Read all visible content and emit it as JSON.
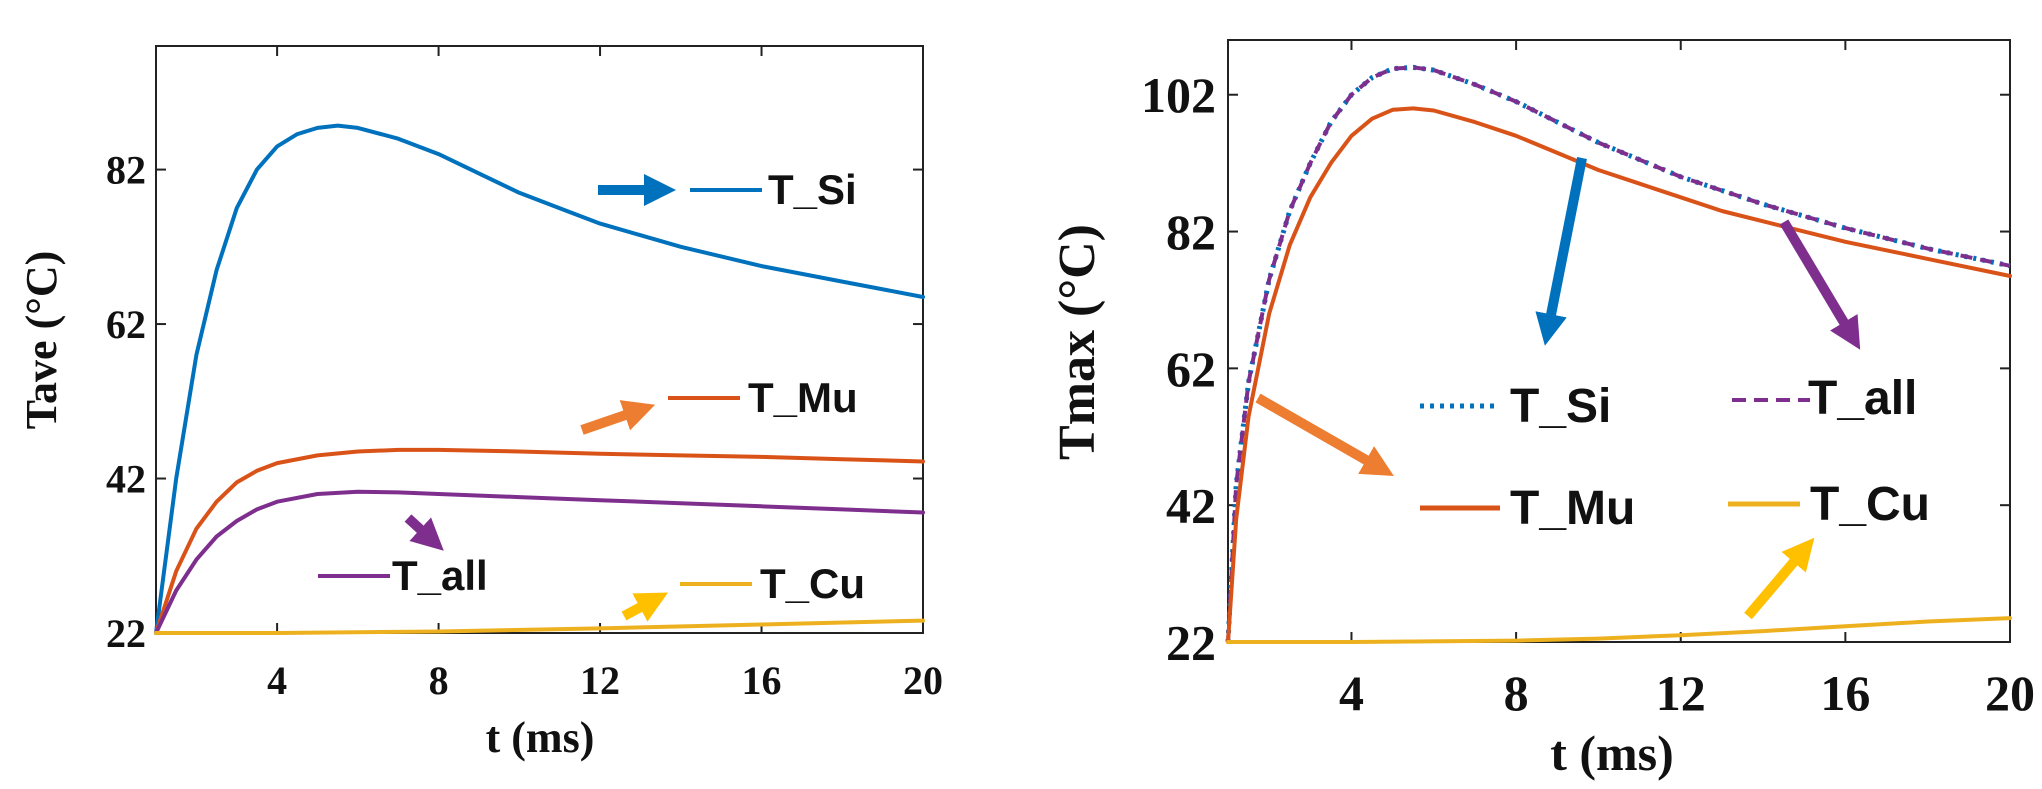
{
  "colors": {
    "si": "#0072BD",
    "mu": "#D95319",
    "all": "#7E2F8E",
    "cu": "#EDB120",
    "arrow_mu": "#ED7D31",
    "arrow_cu": "#FFC000"
  },
  "chart_data": [
    {
      "type": "line",
      "title": "",
      "xlabel": "t (ms)",
      "ylabel": "Tave (°C)",
      "xlim": [
        1,
        20
      ],
      "ylim": [
        22,
        98
      ],
      "xticks": [
        "4",
        "8",
        "12",
        "16",
        "20"
      ],
      "yticks": [
        "22",
        "42",
        "62",
        "82"
      ],
      "grid": false,
      "series": [
        {
          "name": "T_Si",
          "color": "#0072BD",
          "style": "solid",
          "x": [
            1,
            1.5,
            2,
            2.5,
            3,
            3.5,
            4,
            4.5,
            5,
            5.5,
            6,
            7,
            8,
            9,
            10,
            11,
            12,
            13,
            14,
            16,
            18,
            20
          ],
          "y": [
            22,
            42,
            58,
            69,
            77,
            82,
            85,
            86.6,
            87.4,
            87.7,
            87.4,
            86,
            84,
            81.5,
            79,
            77,
            75,
            73.5,
            72,
            69.5,
            67.5,
            65.5
          ]
        },
        {
          "name": "T_Mu",
          "color": "#D95319",
          "style": "solid",
          "x": [
            1,
            1.5,
            2,
            2.5,
            3,
            3.5,
            4,
            5,
            6,
            7,
            8,
            10,
            12,
            14,
            16,
            18,
            20
          ],
          "y": [
            22,
            30,
            35.5,
            39,
            41.5,
            43,
            44,
            45,
            45.5,
            45.7,
            45.7,
            45.5,
            45.2,
            45,
            44.8,
            44.5,
            44.2
          ]
        },
        {
          "name": "T_all",
          "color": "#7E2F8E",
          "style": "solid",
          "x": [
            1,
            1.5,
            2,
            2.5,
            3,
            3.5,
            4,
            5,
            6,
            7,
            8,
            10,
            12,
            14,
            16,
            18,
            20
          ],
          "y": [
            22,
            27.5,
            31.5,
            34.5,
            36.5,
            38,
            39,
            40,
            40.3,
            40.2,
            40,
            39.6,
            39.2,
            38.8,
            38.4,
            38,
            37.6
          ]
        },
        {
          "name": "T_Cu",
          "color": "#EDB120",
          "style": "solid",
          "x": [
            1,
            4,
            8,
            12,
            16,
            20
          ],
          "y": [
            22,
            22,
            22.2,
            22.6,
            23.1,
            23.6
          ]
        }
      ],
      "legend": [
        {
          "label": "T_Si",
          "color": "#0072BD"
        },
        {
          "label": "T_Mu",
          "color": "#D95319"
        },
        {
          "label": "T_all",
          "color": "#7E2F8E"
        },
        {
          "label": "T_Cu",
          "color": "#EDB120"
        }
      ]
    },
    {
      "type": "line",
      "title": "",
      "xlabel": "t (ms)",
      "ylabel": "Tmax (°C)",
      "xlim": [
        1,
        20
      ],
      "ylim": [
        22,
        110
      ],
      "xticks": [
        "4",
        "8",
        "12",
        "16",
        "20"
      ],
      "yticks": [
        "22",
        "42",
        "62",
        "82",
        "102"
      ],
      "grid": false,
      "series": [
        {
          "name": "T_Si",
          "color": "#0072BD",
          "style": "dotted",
          "x": [
            1,
            1.2,
            1.5,
            2,
            2.5,
            3,
            3.5,
            4,
            4.5,
            5,
            5.5,
            6,
            7,
            8,
            9,
            10,
            11,
            12,
            13,
            14,
            16,
            18,
            20
          ],
          "y": [
            22,
            45,
            60,
            75,
            85,
            92,
            98,
            102,
            104.5,
            105.8,
            106,
            105.6,
            103.5,
            101,
            98,
            95,
            92.5,
            90,
            88,
            86,
            82.5,
            79.5,
            77
          ]
        },
        {
          "name": "T_all",
          "color": "#7E2F8E",
          "style": "dashed",
          "x": [
            1,
            1.2,
            1.5,
            2,
            2.5,
            3,
            3.5,
            4,
            4.5,
            5,
            5.5,
            6,
            7,
            8,
            9,
            10,
            11,
            12,
            13,
            14,
            16,
            18,
            20
          ],
          "y": [
            22,
            45,
            60,
            75,
            85,
            92,
            98,
            102,
            104.5,
            105.8,
            106,
            105.6,
            103.5,
            101,
            98,
            95,
            92.5,
            90,
            88,
            86,
            82.5,
            79.5,
            77
          ]
        },
        {
          "name": "T_Mu",
          "color": "#D95319",
          "style": "solid",
          "x": [
            1,
            1.2,
            1.5,
            2,
            2.5,
            3,
            3.5,
            4,
            4.5,
            5,
            5.5,
            6,
            7,
            8,
            9,
            10,
            11,
            12,
            13,
            14,
            16,
            18,
            20
          ],
          "y": [
            22,
            40,
            55,
            70,
            80,
            87,
            92,
            96,
            98.5,
            99.8,
            100,
            99.7,
            98,
            96,
            93.5,
            91,
            89,
            87,
            85,
            83.5,
            80.5,
            78,
            75.5
          ]
        },
        {
          "name": "T_Cu",
          "color": "#EDB120",
          "style": "solid",
          "x": [
            1,
            4,
            8,
            10,
            12,
            14,
            16,
            18,
            20
          ],
          "y": [
            22,
            22,
            22.2,
            22.5,
            23,
            23.6,
            24.3,
            25,
            25.5
          ]
        }
      ],
      "legend": [
        {
          "label": "T_Si",
          "color": "#0072BD"
        },
        {
          "label": "T_all",
          "color": "#7E2F8E"
        },
        {
          "label": "T_Mu",
          "color": "#D95319"
        },
        {
          "label": "T_Cu",
          "color": "#EDB120"
        }
      ]
    }
  ]
}
